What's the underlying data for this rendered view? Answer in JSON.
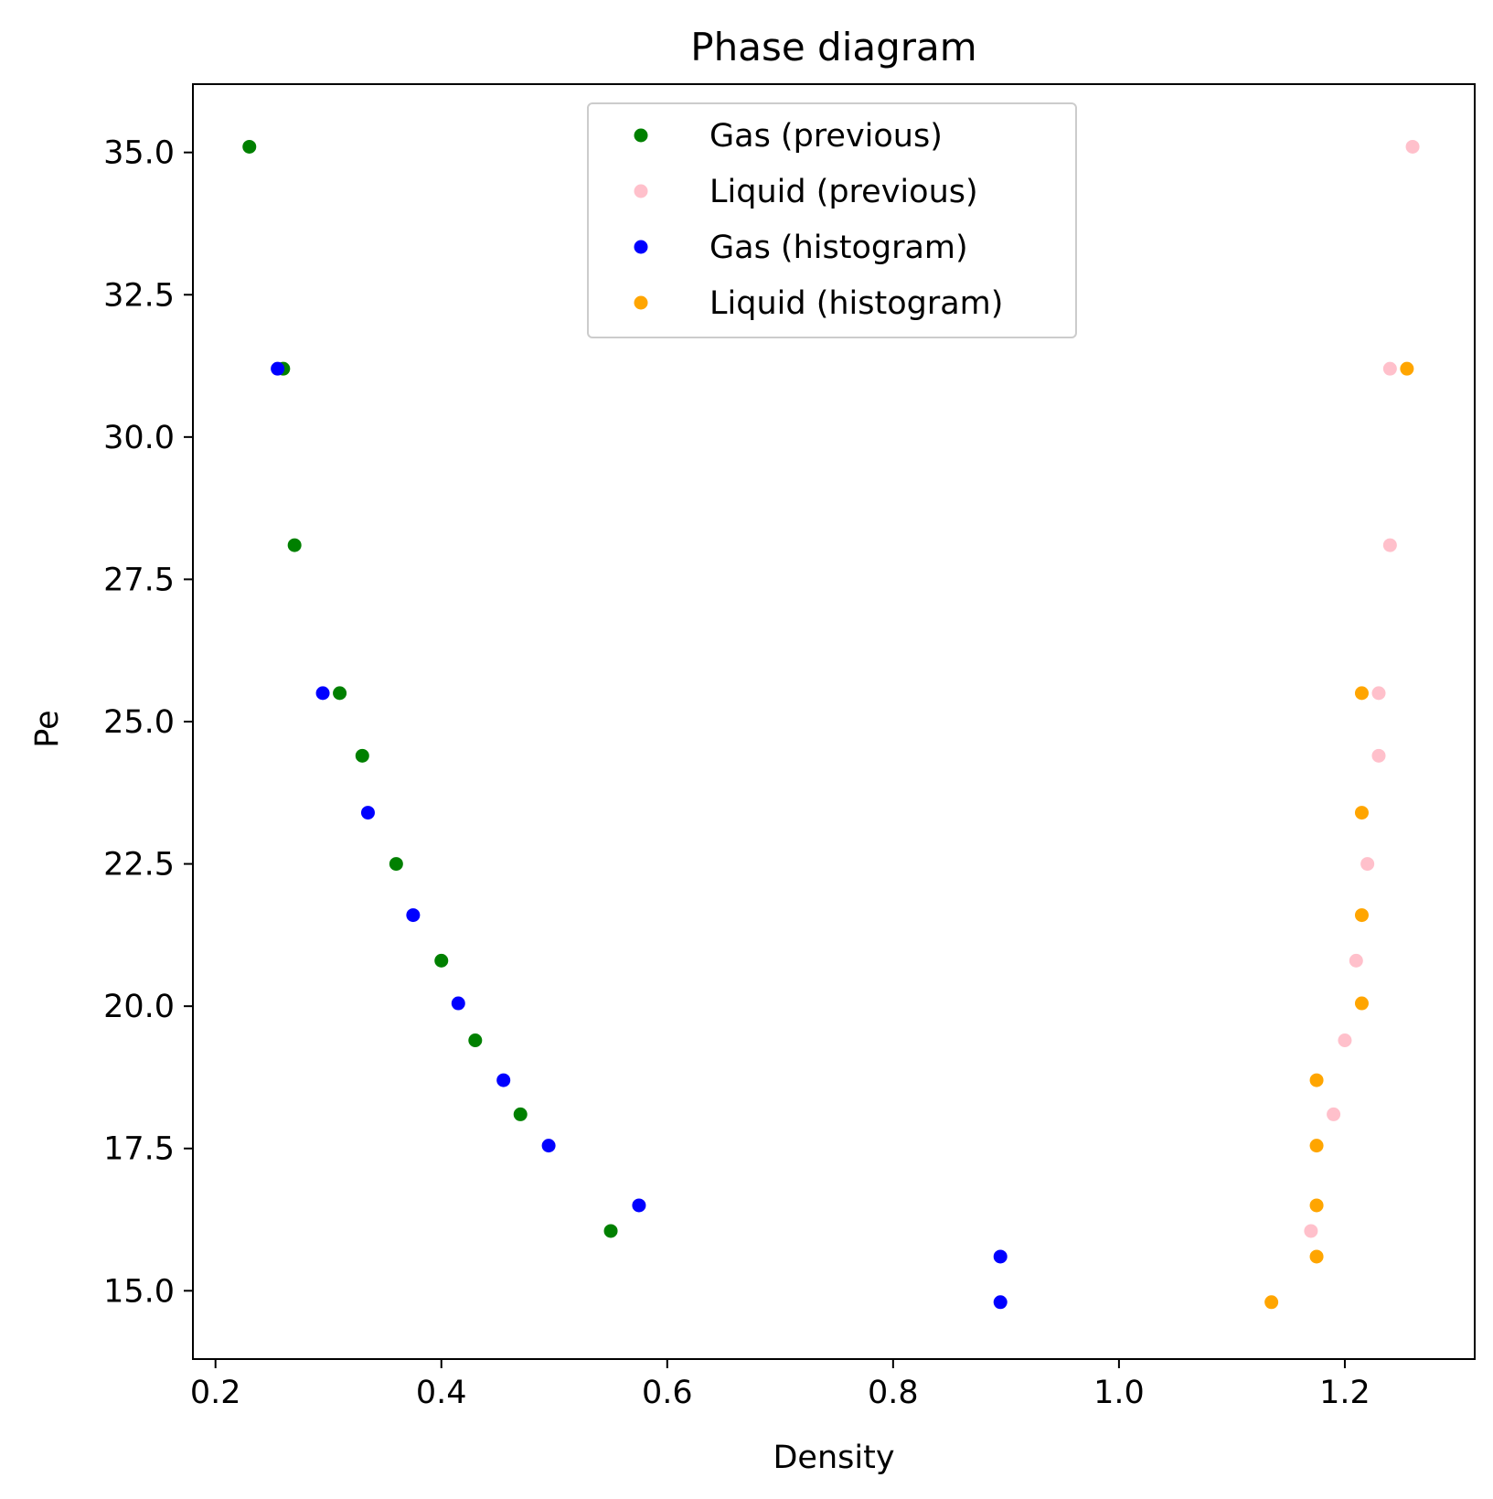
{
  "chart_data": {
    "type": "scatter",
    "title": "Phase diagram",
    "xlabel": "Density",
    "ylabel": "Pe",
    "xlim": [
      0.18,
      1.315
    ],
    "ylim": [
      13.8,
      36.2
    ],
    "xticks": [
      0.2,
      0.4,
      0.6,
      0.8,
      1.0,
      1.2
    ],
    "xtick_labels": [
      "0.2",
      "0.4",
      "0.6",
      "0.8",
      "1.0",
      "1.2"
    ],
    "yticks": [
      15.0,
      17.5,
      20.0,
      22.5,
      25.0,
      27.5,
      30.0,
      32.5,
      35.0
    ],
    "ytick_labels": [
      "15.0",
      "17.5",
      "20.0",
      "22.5",
      "25.0",
      "27.5",
      "30.0",
      "32.5",
      "35.0"
    ],
    "grid": false,
    "legend_position": "top-center",
    "series": [
      {
        "name": "Gas (previous)",
        "color": "#008000",
        "points": [
          {
            "x": 0.23,
            "y": 35.1
          },
          {
            "x": 0.26,
            "y": 31.2
          },
          {
            "x": 0.27,
            "y": 28.1
          },
          {
            "x": 0.31,
            "y": 25.5
          },
          {
            "x": 0.33,
            "y": 24.4
          },
          {
            "x": 0.36,
            "y": 22.5
          },
          {
            "x": 0.4,
            "y": 20.8
          },
          {
            "x": 0.43,
            "y": 19.4
          },
          {
            "x": 0.47,
            "y": 18.1
          },
          {
            "x": 0.55,
            "y": 16.05
          }
        ]
      },
      {
        "name": "Liquid (previous)",
        "color": "#ffc0cb",
        "points": [
          {
            "x": 1.26,
            "y": 35.1
          },
          {
            "x": 1.24,
            "y": 31.2
          },
          {
            "x": 1.24,
            "y": 28.1
          },
          {
            "x": 1.23,
            "y": 25.5
          },
          {
            "x": 1.23,
            "y": 24.4
          },
          {
            "x": 1.22,
            "y": 22.5
          },
          {
            "x": 1.21,
            "y": 20.8
          },
          {
            "x": 1.2,
            "y": 19.4
          },
          {
            "x": 1.19,
            "y": 18.1
          },
          {
            "x": 1.17,
            "y": 16.05
          }
        ]
      },
      {
        "name": "Gas (histogram)",
        "color": "#0000ff",
        "points": [
          {
            "x": 0.255,
            "y": 31.2
          },
          {
            "x": 0.295,
            "y": 25.5
          },
          {
            "x": 0.335,
            "y": 23.4
          },
          {
            "x": 0.375,
            "y": 21.6
          },
          {
            "x": 0.415,
            "y": 20.05
          },
          {
            "x": 0.455,
            "y": 18.7
          },
          {
            "x": 0.495,
            "y": 17.55
          },
          {
            "x": 0.575,
            "y": 16.5
          },
          {
            "x": 0.895,
            "y": 15.6
          },
          {
            "x": 0.895,
            "y": 14.8
          }
        ]
      },
      {
        "name": "Liquid (histogram)",
        "color": "#ffa500",
        "points": [
          {
            "x": 1.255,
            "y": 31.2
          },
          {
            "x": 1.215,
            "y": 25.5
          },
          {
            "x": 1.215,
            "y": 23.4
          },
          {
            "x": 1.215,
            "y": 21.6
          },
          {
            "x": 1.215,
            "y": 20.05
          },
          {
            "x": 1.175,
            "y": 18.7
          },
          {
            "x": 1.175,
            "y": 17.55
          },
          {
            "x": 1.175,
            "y": 16.5
          },
          {
            "x": 1.175,
            "y": 15.6
          },
          {
            "x": 1.135,
            "y": 14.8
          }
        ]
      }
    ]
  }
}
